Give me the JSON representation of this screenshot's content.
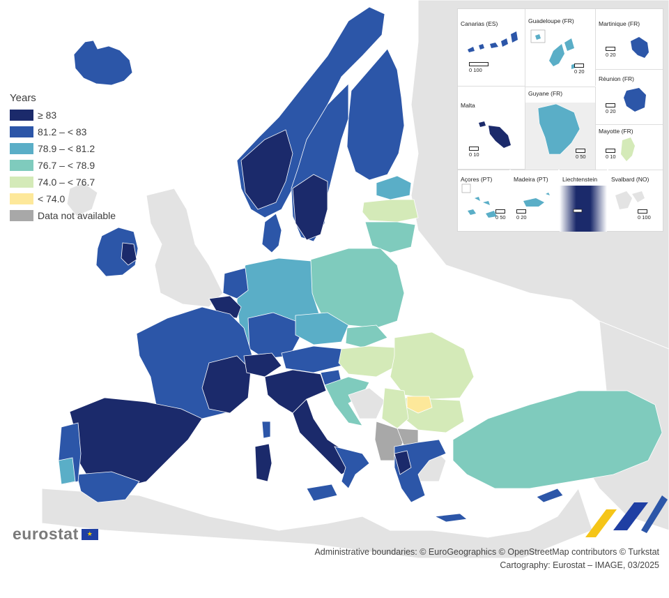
{
  "legend": {
    "title": "Years",
    "classes": [
      {
        "label": "≥ 83",
        "color": "#1b2a6b"
      },
      {
        "label": "81.2 – < 83",
        "color": "#2c56a8"
      },
      {
        "label": "78.9 – < 81.2",
        "color": "#5aaec7"
      },
      {
        "label": "76.7 – < 78.9",
        "color": "#7fcbbd"
      },
      {
        "label": "74.0 – < 76.7",
        "color": "#d4eab8"
      },
      {
        "label": "< 74.0",
        "color": "#fde89a"
      },
      {
        "label": "Data not available",
        "color": "#a8a8a8"
      }
    ]
  },
  "insets": [
    {
      "title": "Canarias (ES)",
      "scale": "0  100"
    },
    {
      "title": "Guadeloupe (FR)",
      "scale": "0  20"
    },
    {
      "title": "Martinique (FR)",
      "scale": "0  20"
    },
    {
      "title": "Malta",
      "scale": "0  10"
    },
    {
      "title": "Guyane (FR)",
      "scale": "0  50"
    },
    {
      "title": "Réunion (FR)",
      "scale": "0  20"
    },
    {
      "title": "Mayotte (FR)",
      "scale": "0  10"
    },
    {
      "title": "Açores (PT)",
      "scale": "0  50"
    },
    {
      "title": "Madeira (PT)",
      "scale": "0  20"
    },
    {
      "title": "Liechtenstein",
      "scale": ""
    },
    {
      "title": "Svalbard (NO)",
      "scale": "0 100"
    }
  ],
  "credits": {
    "line1": "Administrative boundaries: © EuroGeographics © OpenStreetMap contributors © Turkstat",
    "line2": "Cartography: Eurostat – IMAGE, 03/2025"
  },
  "brand": {
    "name": "eurostat",
    "flag_icon": "eu-flag-icon"
  },
  "colors": {
    "background_land": "#e3e3e3",
    "water": "#ffffff",
    "border": "#ffffff"
  }
}
